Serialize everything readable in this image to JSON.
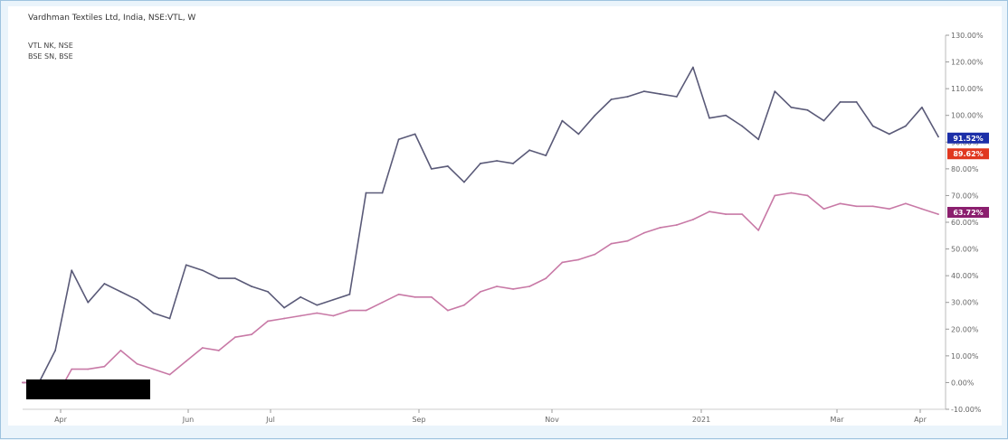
{
  "chart_data": {
    "type": "line",
    "title": "Vardhman Textiles Ltd, India, NSE:VTL, W",
    "legend": [
      "VTL NK, NSE",
      "BSE SN, BSE"
    ],
    "x_tick_labels": [
      "Apr",
      "Jun",
      "Jul",
      "Sep",
      "Nov",
      "2021",
      "Mar",
      "Apr"
    ],
    "y_tick_labels": [
      "130.00%",
      "120.00%",
      "110.00%",
      "100.00%",
      "90.00%",
      "80.00%",
      "70.00%",
      "60.00%",
      "50.00%",
      "40.00%",
      "30.00%",
      "20.00%",
      "10.00%",
      "0.00%",
      "-10.00%"
    ],
    "ylim": [
      -10,
      130
    ],
    "grid": false,
    "series": [
      {
        "name": "VTL NK, NSE",
        "color": "#5a5a78",
        "end_label": "91.52%",
        "end_label_color": "#1c2fa8",
        "values": [
          0,
          0,
          12,
          42,
          30,
          37,
          34,
          31,
          26,
          24,
          44,
          42,
          39,
          39,
          36,
          34,
          28,
          32,
          29,
          31,
          33,
          71,
          71,
          91,
          93,
          80,
          81,
          75,
          82,
          83,
          82,
          87,
          85,
          98,
          93,
          100,
          106,
          107,
          109,
          108,
          107,
          118,
          99,
          100,
          96,
          91,
          109,
          103,
          102,
          98,
          105,
          105,
          96,
          93,
          96,
          103,
          92
        ]
      },
      {
        "name": "BSE SN, BSE",
        "color": "#c879a6",
        "end_label": "63.72%",
        "end_label_color": "#8b1f6e",
        "values": [
          0,
          0,
          -6,
          5,
          5,
          6,
          12,
          7,
          5,
          3,
          8,
          13,
          12,
          17,
          18,
          23,
          24,
          25,
          26,
          25,
          27,
          27,
          30,
          33,
          32,
          32,
          27,
          29,
          34,
          36,
          35,
          36,
          39,
          45,
          46,
          48,
          52,
          53,
          56,
          58,
          59,
          61,
          64,
          63,
          63,
          57,
          70,
          71,
          70,
          65,
          67,
          66,
          66,
          65,
          67,
          65,
          63
        ]
      }
    ],
    "extra_labels": [
      {
        "text": "89.62%",
        "color": "#e0381f"
      }
    ]
  }
}
